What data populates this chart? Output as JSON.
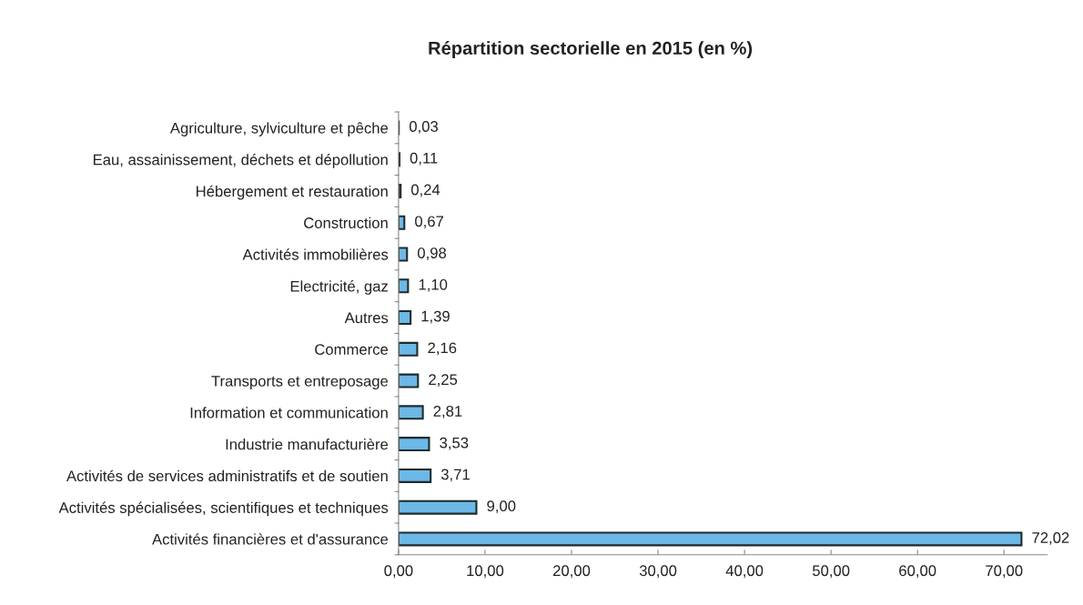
{
  "chart_data": {
    "type": "bar",
    "orientation": "horizontal",
    "title": "Répartition sectorielle en 2015 (en %)",
    "categories": [
      "Agriculture, sylviculture et pêche",
      "Eau, assainissement, déchets et dépollution",
      "Hébergement et restauration",
      "Construction",
      "Activités immobilières",
      "Electricité, gaz",
      "Autres",
      "Commerce",
      "Transports et entreposage",
      "Information et communication",
      "Industrie manufacturière",
      "Activités de services administratifs et de soutien",
      "Activités spécialisées, scientifiques et techniques",
      "Activités financières et d'assurance"
    ],
    "values": [
      0.03,
      0.11,
      0.24,
      0.67,
      0.98,
      1.1,
      1.39,
      2.16,
      2.25,
      2.81,
      3.53,
      3.71,
      9.0,
      72.02
    ],
    "value_labels": [
      "0,03",
      "0,11",
      "0,24",
      "0,67",
      "0,98",
      "1,10",
      "1,39",
      "2,16",
      "2,25",
      "2,81",
      "3,53",
      "3,71",
      "9,00",
      "72,02"
    ],
    "color": "#6cb8e6",
    "xlim": [
      0,
      75
    ],
    "xticks": [
      {
        "value": 0,
        "label": "0,00"
      },
      {
        "value": 10,
        "label": "10,00"
      },
      {
        "value": 20,
        "label": "20,00"
      },
      {
        "value": 30,
        "label": "30,00"
      },
      {
        "value": 40,
        "label": "40,00"
      },
      {
        "value": 50,
        "label": "50,00"
      },
      {
        "value": 60,
        "label": "60,00"
      },
      {
        "value": 70,
        "label": "70,00"
      }
    ],
    "grid": false,
    "legend": false
  }
}
